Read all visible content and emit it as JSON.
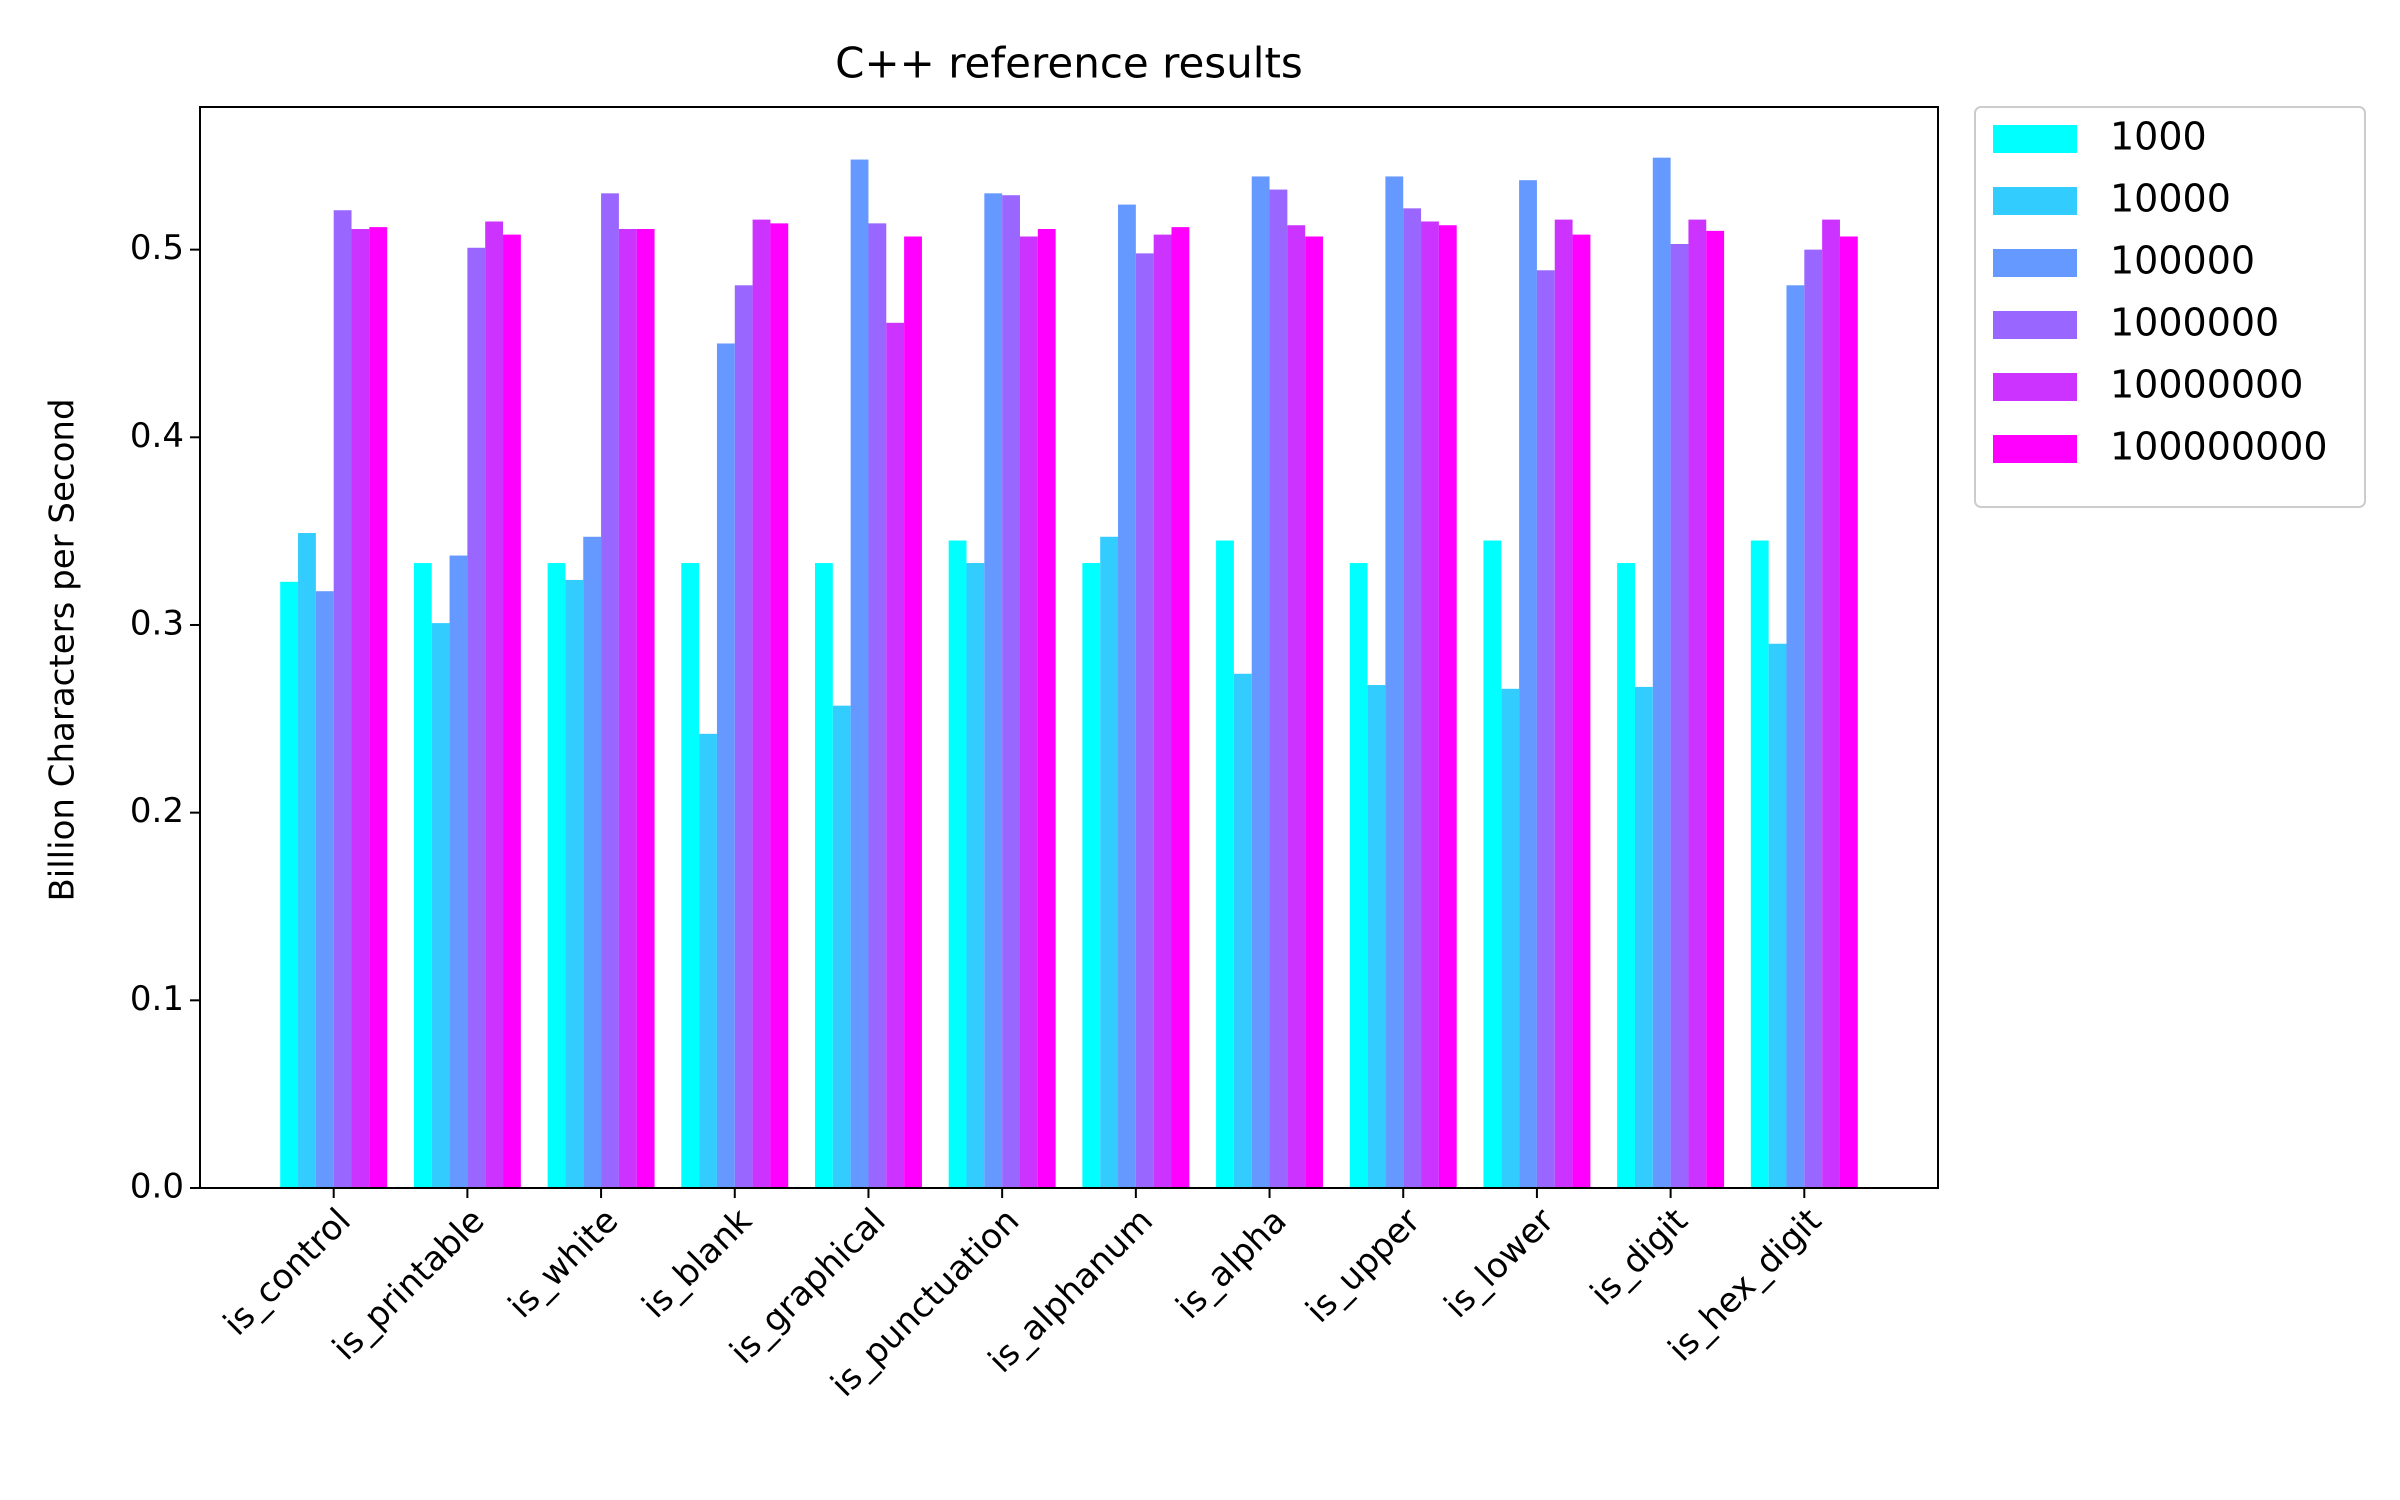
{
  "chart_data": {
    "type": "bar",
    "title": "C++ reference results",
    "y_label": "Billion Characters per Second",
    "categories": [
      "is_control",
      "is_printable",
      "is_white",
      "is_blank",
      "is_graphical",
      "is_punctuation",
      "is_alphanum",
      "is_alpha",
      "is_upper",
      "is_lower",
      "is_digit",
      "is_hex_digit"
    ],
    "series": [
      {
        "name": "1000",
        "color": "#00ffff",
        "values": [
          0.323,
          0.333,
          0.333,
          0.333,
          0.333,
          0.345,
          0.333,
          0.345,
          0.333,
          0.345,
          0.333,
          0.345
        ]
      },
      {
        "name": "10000",
        "color": "#33ccff",
        "values": [
          0.349,
          0.301,
          0.324,
          0.242,
          0.257,
          0.333,
          0.347,
          0.274,
          0.268,
          0.266,
          0.267,
          0.29
        ]
      },
      {
        "name": "100000",
        "color": "#6699ff",
        "values": [
          0.318,
          0.337,
          0.347,
          0.45,
          0.548,
          0.53,
          0.524,
          0.539,
          0.539,
          0.537,
          0.549,
          0.481
        ]
      },
      {
        "name": "1000000",
        "color": "#9966ff",
        "values": [
          0.521,
          0.501,
          0.53,
          0.481,
          0.514,
          0.529,
          0.498,
          0.532,
          0.522,
          0.489,
          0.503,
          0.5
        ]
      },
      {
        "name": "10000000",
        "color": "#cc33ff",
        "values": [
          0.511,
          0.515,
          0.511,
          0.516,
          0.461,
          0.507,
          0.508,
          0.513,
          0.515,
          0.516,
          0.516,
          0.516
        ]
      },
      {
        "name": "100000000",
        "color": "#ff00ff",
        "values": [
          0.512,
          0.508,
          0.511,
          0.514,
          0.507,
          0.511,
          0.512,
          0.507,
          0.513,
          0.508,
          0.51,
          0.507
        ]
      }
    ],
    "ylim": [
      0,
      0.576
    ],
    "yticks": [
      {
        "value": 0,
        "label": "0.0"
      },
      0.1,
      0.2,
      0.3,
      0.4,
      0.5
    ],
    "grid": false,
    "legend": "outside-upper-right"
  }
}
